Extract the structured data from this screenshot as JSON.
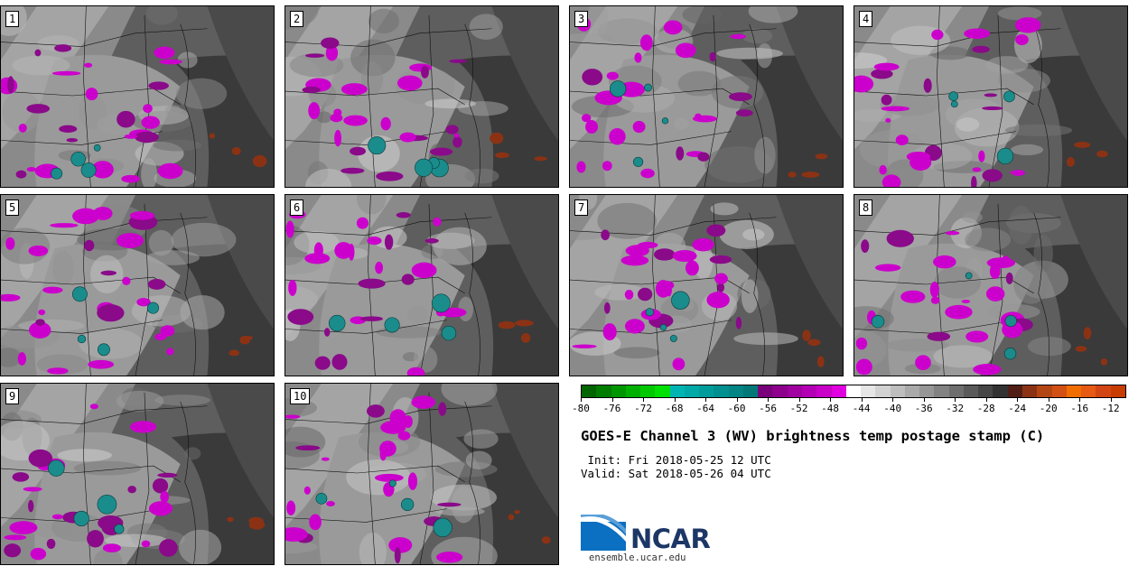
{
  "panels": [
    {
      "label": "1"
    },
    {
      "label": "2"
    },
    {
      "label": "3"
    },
    {
      "label": "4"
    },
    {
      "label": "5"
    },
    {
      "label": "6"
    },
    {
      "label": "7"
    },
    {
      "label": "8"
    },
    {
      "label": "9"
    },
    {
      "label": "10"
    }
  ],
  "colorbar": {
    "ticks": [
      "-80",
      "-76",
      "-72",
      "-68",
      "-64",
      "-60",
      "-56",
      "-52",
      "-48",
      "-44",
      "-40",
      "-36",
      "-32",
      "-28",
      "-24",
      "-20",
      "-16",
      "-12"
    ],
    "swatches": [
      "#006400",
      "#007d00",
      "#009600",
      "#00b000",
      "#00c800",
      "#00e000",
      "#00b4b4",
      "#00a8a8",
      "#009c9c",
      "#009090",
      "#008484",
      "#007878",
      "#780078",
      "#8c008c",
      "#a000a0",
      "#b400b4",
      "#c800c8",
      "#e000e0",
      "#ffffff",
      "#e6e6e6",
      "#d2d2d2",
      "#bebebe",
      "#aaaaaa",
      "#969696",
      "#828282",
      "#6e6e6e",
      "#5a5a5a",
      "#464646",
      "#323232",
      "#501e14",
      "#8c3214",
      "#b44614",
      "#d25014",
      "#f06e00",
      "#e65a14",
      "#d24614",
      "#c83c00"
    ]
  },
  "title": "GOES-E Channel 3 (WV) brightness temp postage stamp (C)",
  "init_text": " Init: Fri 2018-05-25 12 UTC",
  "valid_text": "Valid: Sat 2018-05-26 04 UTC",
  "logo": {
    "text": "NCAR",
    "url": "ensemble.ucar.edu"
  }
}
